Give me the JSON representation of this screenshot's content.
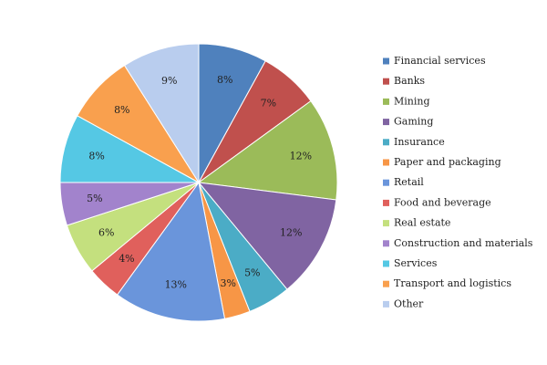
{
  "chart_data": {
    "type": "pie",
    "categories": [
      "Financial services",
      "Banks",
      "Mining",
      "Gaming",
      "Insurance",
      "Paper and packaging",
      "Retail",
      "Food and beverage",
      "Real estate",
      "Construction and materials",
      "Services",
      "Transport and logistics",
      "Other"
    ],
    "values": [
      8,
      7,
      12,
      12,
      5,
      3,
      13,
      4,
      6,
      5,
      8,
      8,
      9
    ],
    "value_labels": [
      "8%",
      "7%",
      "12%",
      "12%",
      "5%",
      "3%",
      "13%",
      "4%",
      "6%",
      "5%",
      "8%",
      "8%",
      "9%"
    ],
    "colors": [
      "#4f81bd",
      "#c0504d",
      "#9bbb59",
      "#8064a2",
      "#4bacc6",
      "#f79646",
      "#6a95db",
      "#e0605c",
      "#c4e07e",
      "#a283cc",
      "#55c8e4",
      "#f9a04e",
      "#b9cdee"
    ],
    "legend": "right"
  }
}
